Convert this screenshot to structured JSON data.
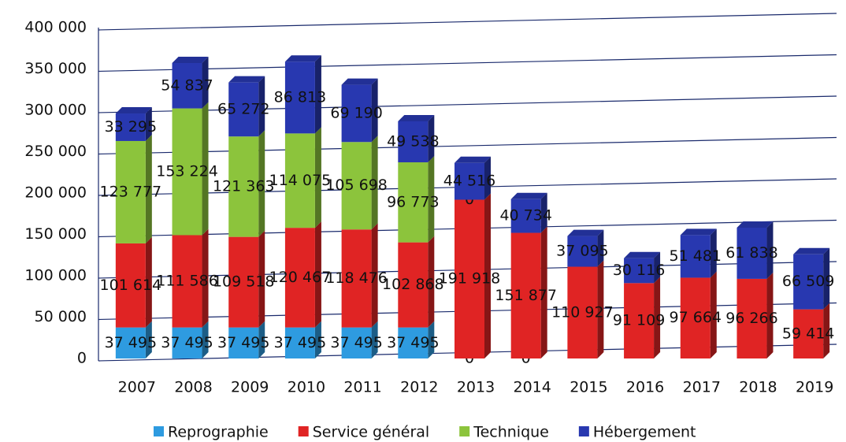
{
  "chart_data": {
    "type": "bar",
    "stacked": true,
    "categories": [
      "2007",
      "2008",
      "2009",
      "2010",
      "2011",
      "2012",
      "2013",
      "2014",
      "2015",
      "2016",
      "2017",
      "2018",
      "2019"
    ],
    "series": [
      {
        "name": "Reprographie",
        "color": "#2e9be0",
        "values": [
          37495,
          37495,
          37495,
          37495,
          37495,
          37495,
          0,
          0,
          null,
          null,
          null,
          null,
          null
        ],
        "value_labels": [
          "37 495",
          "37 495",
          "37 495",
          "37 495",
          "37 495",
          "37 495",
          "0",
          "0",
          null,
          null,
          null,
          null,
          null
        ]
      },
      {
        "name": "Service général",
        "color": "#e02424",
        "values": [
          101614,
          111586,
          109518,
          120467,
          118476,
          102868,
          191918,
          151877,
          110927,
          91109,
          97664,
          96266,
          59414
        ],
        "value_labels": [
          "101 614",
          "111 586",
          "109 518",
          "120 467",
          "118 476",
          "102 868",
          "191 918",
          "151 877",
          "110 927",
          "91 109",
          "97 664",
          "96 266",
          "59 414"
        ]
      },
      {
        "name": "Technique",
        "color": "#8cc43c",
        "values": [
          123777,
          153224,
          121363,
          114075,
          105698,
          96773,
          0,
          null,
          null,
          null,
          null,
          null,
          null
        ],
        "value_labels": [
          "123 777",
          "153 224",
          "121 363",
          "114 075",
          "105 698",
          "96 773",
          "0",
          null,
          null,
          null,
          null,
          null,
          null
        ]
      },
      {
        "name": "Hébergement",
        "color": "#2838b0",
        "values": [
          33295,
          54837,
          65272,
          86813,
          69190,
          49538,
          44516,
          40734,
          37095,
          30116,
          51481,
          61838,
          66509
        ],
        "value_labels": [
          "33 295",
          "54 837",
          "65 272",
          "86 813",
          "69 190",
          "49 538",
          "44 516",
          "40 734",
          "37 095",
          "30 116",
          "51 481",
          "61 838",
          "66 509"
        ]
      }
    ],
    "ylim": [
      0,
      400000
    ],
    "yticks": [
      0,
      {
        "value": 50000,
        "label": "50 000"
      },
      {
        "value": 100000,
        "label": "100 000"
      },
      {
        "value": 150000,
        "label": "150 000"
      },
      {
        "value": 200000,
        "label": "200 000"
      },
      {
        "value": 250000,
        "label": "250 000"
      },
      {
        "value": 300000,
        "label": "300 000"
      },
      {
        "value": 350000,
        "label": "350 000"
      },
      {
        "value": 400000,
        "label": "400 000"
      }
    ],
    "grid": true,
    "legend": "bottom"
  }
}
